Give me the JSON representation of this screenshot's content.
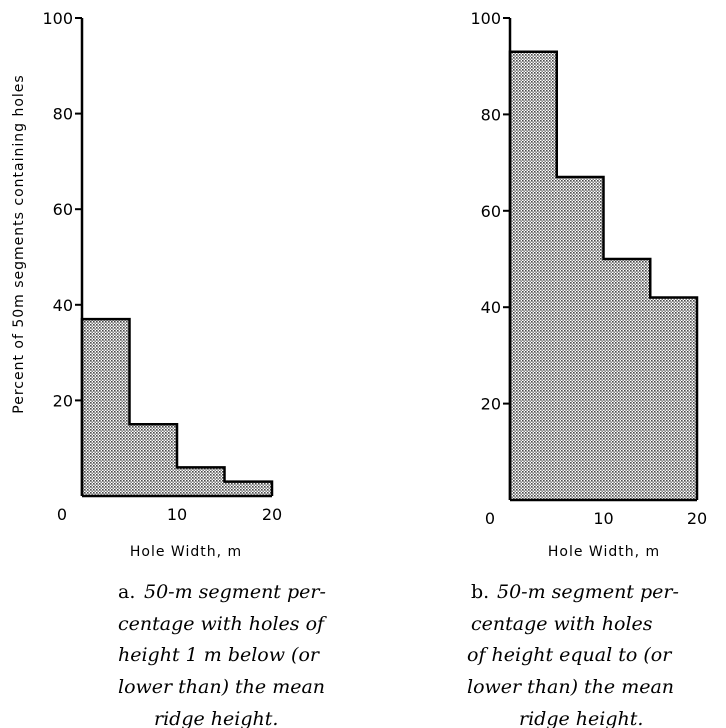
{
  "chart_data": [
    {
      "type": "bar",
      "bins": [
        [
          0,
          5
        ],
        [
          5,
          10
        ],
        [
          10,
          15
        ],
        [
          15,
          20
        ]
      ],
      "values": [
        37,
        15,
        6,
        3
      ],
      "ylabel": "Percent of 50m segments containing holes",
      "xlabel": "Hole Width,  m",
      "ylim": [
        0,
        100
      ],
      "xlim": [
        0,
        20
      ],
      "yticks": [
        "20",
        "40",
        "60",
        "80",
        "100"
      ],
      "xticks": [
        "0",
        "10",
        "20"
      ],
      "caption_label": "a.",
      "caption": [
        "50-m segment per-",
        "centage with holes of",
        "height 1 m below (or",
        "lower than) the mean",
        "ridge height."
      ]
    },
    {
      "type": "bar",
      "bins": [
        [
          0,
          5
        ],
        [
          5,
          10
        ],
        [
          10,
          15
        ],
        [
          15,
          20
        ]
      ],
      "values": [
        93,
        67,
        50,
        42
      ],
      "ylabel": "",
      "xlabel": "Hole Width,  m",
      "ylim": [
        0,
        100
      ],
      "xlim": [
        0,
        20
      ],
      "yticks": [
        "20",
        "40",
        "60",
        "80",
        "100"
      ],
      "xticks": [
        "0",
        "10",
        "20"
      ],
      "caption_label": "b.",
      "caption": [
        "50-m segment per-",
        "centage with holes",
        "of height equal to (or",
        "lower than) the mean",
        "ridge height."
      ]
    }
  ],
  "colors": {
    "fill_pattern": "#000000",
    "background": "#ffffff"
  }
}
